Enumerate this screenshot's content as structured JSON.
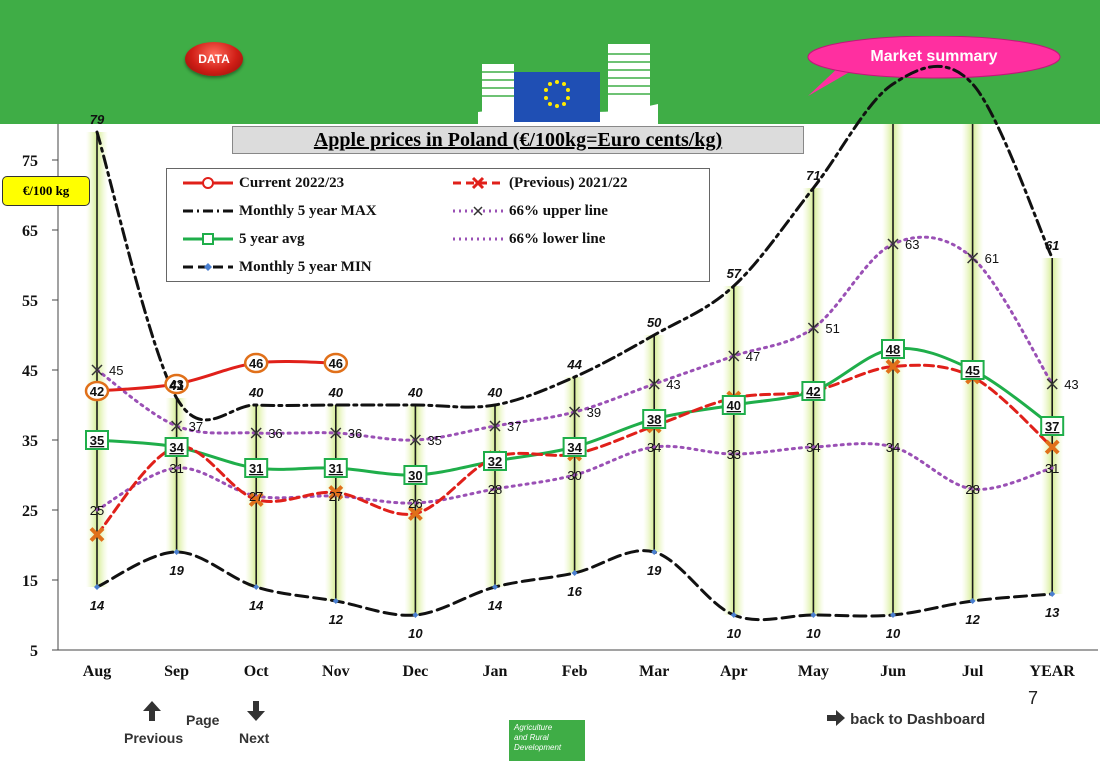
{
  "header": {
    "data_button": "DATA",
    "market_summary": "Market summary"
  },
  "chart": {
    "title": "Apple prices in Poland (€/100kg=Euro cents/kg)",
    "unit_label": "€/100 kg"
  },
  "footer": {
    "page_label": "Page",
    "previous": "Previous",
    "next": "Next",
    "page_number": "7",
    "dashboard_link": "back to Dashboard",
    "agri_lines": [
      "Agriculture",
      "and Rural",
      "Development"
    ]
  },
  "colors": {
    "header_green": "#3fad46",
    "current": "#e0201a",
    "previous": "#e0201a",
    "five_year_avg": "#1fae4a",
    "max_min": "#111111",
    "band": "#9a50b5",
    "marker_fill": "#ffffff"
  },
  "chart_data": {
    "type": "line",
    "categories": [
      "Aug",
      "Sep",
      "Oct",
      "Nov",
      "Dec",
      "Jan",
      "Feb",
      "Mar",
      "Apr",
      "May",
      "Jun",
      "Jul",
      "YEAR"
    ],
    "ylim": [
      5,
      80
    ],
    "yticks": [
      5,
      15,
      25,
      35,
      45,
      55,
      65,
      75
    ],
    "grid": false,
    "legend_position": "top-left",
    "series": [
      {
        "key": "current",
        "name": "Current 2022/23",
        "values": [
          42,
          43,
          46,
          46,
          null,
          null,
          null,
          null,
          null,
          null,
          null,
          null,
          null
        ]
      },
      {
        "key": "previous",
        "name": "(Previous) 2021/22",
        "values": [
          21.5,
          34,
          26.5,
          27.5,
          24.5,
          32.5,
          33,
          37,
          41,
          42,
          45.5,
          44,
          34
        ]
      },
      {
        "key": "max",
        "name": "Monthly 5 year MAX",
        "values": [
          79,
          41,
          40,
          40,
          40,
          40,
          44,
          50,
          57,
          71,
          90,
          90,
          61
        ]
      },
      {
        "key": "upper",
        "name": "66% upper line",
        "values": [
          45,
          37,
          36,
          36,
          35,
          37,
          39,
          43,
          47,
          51,
          63,
          61,
          43
        ]
      },
      {
        "key": "avg",
        "name": "5 year avg",
        "values": [
          35,
          34,
          31,
          31,
          30,
          32,
          34,
          38,
          40,
          42,
          48,
          45,
          37
        ]
      },
      {
        "key": "lower",
        "name": "66% lower line",
        "values": [
          25,
          31,
          27,
          27,
          26,
          28,
          30,
          34,
          33,
          34,
          34,
          28,
          31
        ]
      },
      {
        "key": "min",
        "name": "Monthly 5 year MIN",
        "values": [
          14,
          19,
          14,
          12,
          10,
          14,
          16,
          19,
          10,
          10,
          10,
          12,
          13
        ]
      }
    ]
  }
}
